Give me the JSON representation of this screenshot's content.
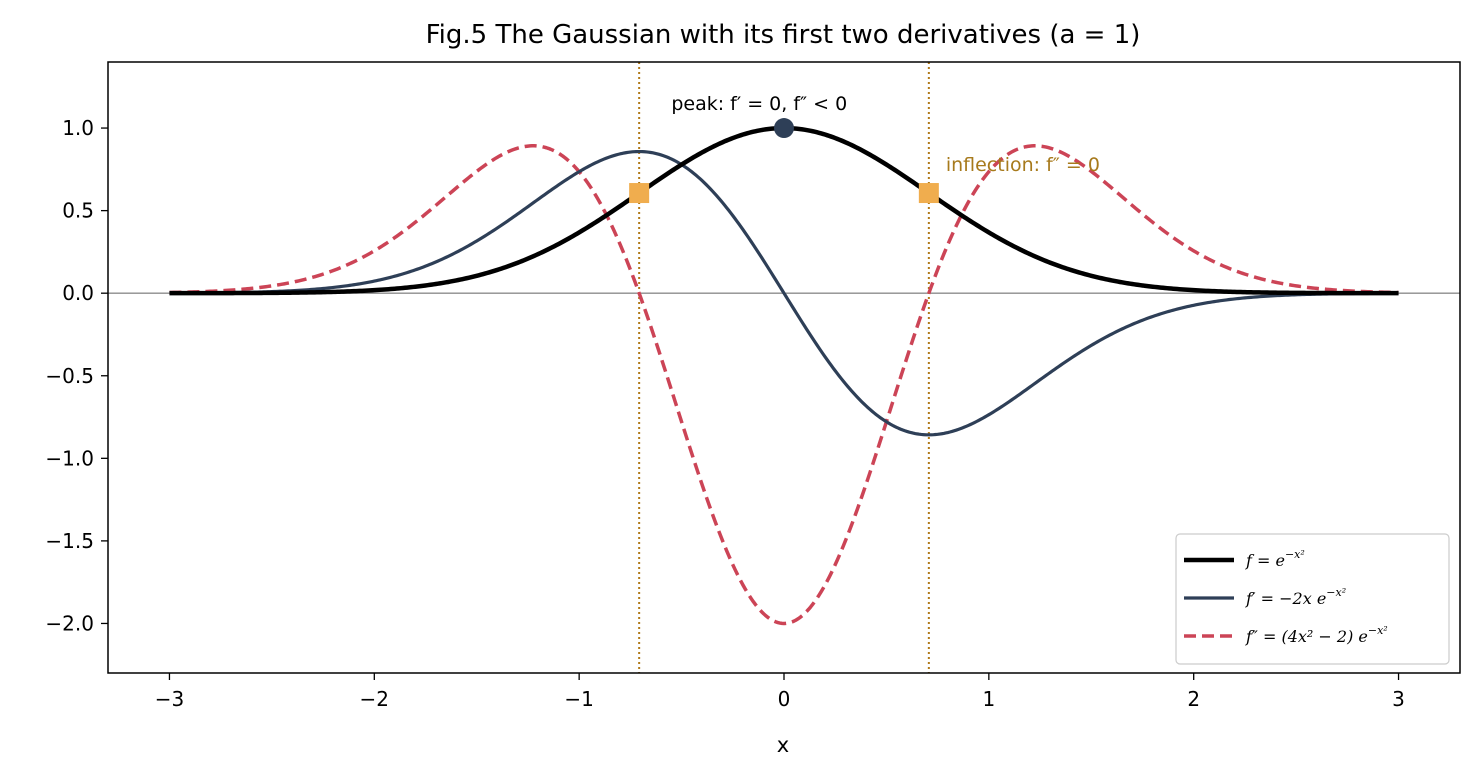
{
  "chart_data": {
    "type": "line",
    "title": "Fig.5 The Gaussian with its first two derivatives (a = 1)",
    "xlabel": "x",
    "ylabel": "",
    "xlim": [
      -3.3,
      3.3
    ],
    "ylim": [
      -2.3,
      1.4
    ],
    "x_ticks": [
      -3,
      -2,
      -1,
      0,
      1,
      2,
      3
    ],
    "x_tick_labels": [
      "−3",
      "−2",
      "−1",
      "0",
      "1",
      "2",
      "3"
    ],
    "y_ticks": [
      1.0,
      0.5,
      0.0,
      -0.5,
      -1.0,
      -1.5,
      -2.0
    ],
    "y_tick_labels": [
      "1.0",
      "0.5",
      "0.0",
      "−0.5",
      "−1.0",
      "−1.5",
      "−2.0"
    ],
    "x_range": [
      -3,
      3
    ],
    "grid": false,
    "legend_position": "bottom-right",
    "series": [
      {
        "name": "f = e^{−x²}",
        "legend_main": "f = e",
        "legend_sup": "−x²",
        "color": "#000000",
        "style": "solid",
        "formula": "gaussian"
      },
      {
        "name": "f′ = −2x e^{−x²}",
        "legend_main": "f′ = −2x e",
        "legend_sup": "−x²",
        "color": "#2e3f57",
        "style": "solid",
        "formula": "first_derivative"
      },
      {
        "name": "f″ = (4x² − 2) e^{−x²}",
        "legend_main": "f″ = (4x² − 2) e",
        "legend_sup": "−x²",
        "color": "#cc4456",
        "style": "dashed",
        "formula": "second_derivative"
      }
    ],
    "baseline": {
      "y": 0,
      "color": "#8c8c8c"
    },
    "inflection_lines": {
      "x": [
        -0.7071,
        0.7071
      ],
      "color": "#b07a1a"
    },
    "markers": {
      "peak": {
        "x": 0,
        "y": 1.0,
        "color": "#2e3f57"
      },
      "inflection": {
        "points": [
          [
            -0.7071,
            0.6065
          ],
          [
            0.7071,
            0.6065
          ]
        ],
        "color": "#f0ad4e"
      }
    },
    "annotations": [
      {
        "id": "peak",
        "text": "peak: f′ = 0, f″ < 0",
        "x": -0.55,
        "y": 1.11,
        "color": "#000000"
      },
      {
        "id": "inflection",
        "text": "inflection: f″ = 0",
        "x": 0.79,
        "y": 0.74,
        "color": "#a77a1c"
      }
    ]
  }
}
